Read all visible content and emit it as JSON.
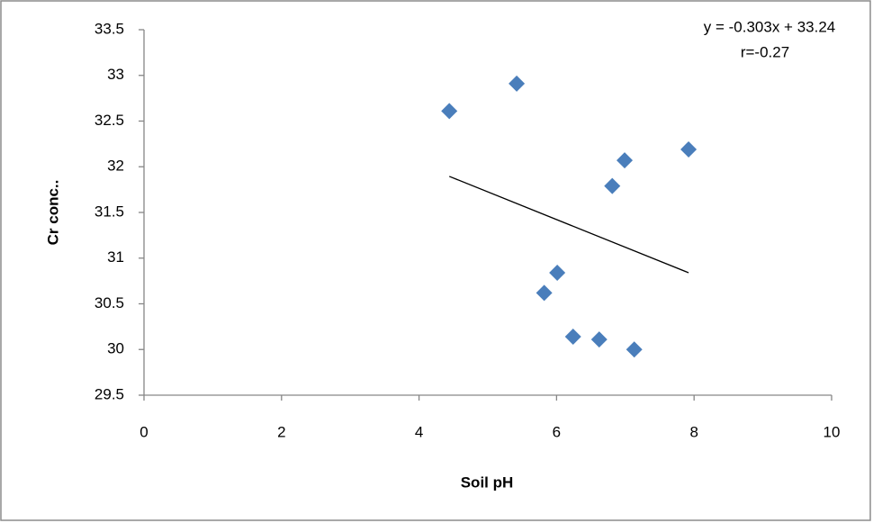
{
  "chart_data": {
    "type": "scatter",
    "x_label": "Soil pH",
    "y_label": "Cr conc..",
    "series": [
      {
        "color": "#4a7ebb",
        "x": [
          4.44,
          5.42,
          7.92,
          6.99,
          6.81,
          6.01,
          5.82,
          6.24,
          6.62,
          7.13
        ],
        "values": [
          32.61,
          32.91,
          32.19,
          32.07,
          31.79,
          30.84,
          30.62,
          30.14,
          30.11,
          30.0
        ]
      }
    ],
    "trendline": {
      "slope": -0.303,
      "intercept": 33.24,
      "label": "y = -0.303x + 33.24",
      "r_label": "r=-0.27",
      "color": "#000000"
    },
    "xlim": [
      0,
      10
    ],
    "xticks": [
      0,
      2,
      4,
      6,
      8,
      10
    ],
    "ylim": [
      29.5,
      33.5
    ],
    "yticks": [
      29.5,
      30,
      30.5,
      31,
      31.5,
      32,
      32.5,
      33,
      33.5
    ],
    "grid": false
  }
}
